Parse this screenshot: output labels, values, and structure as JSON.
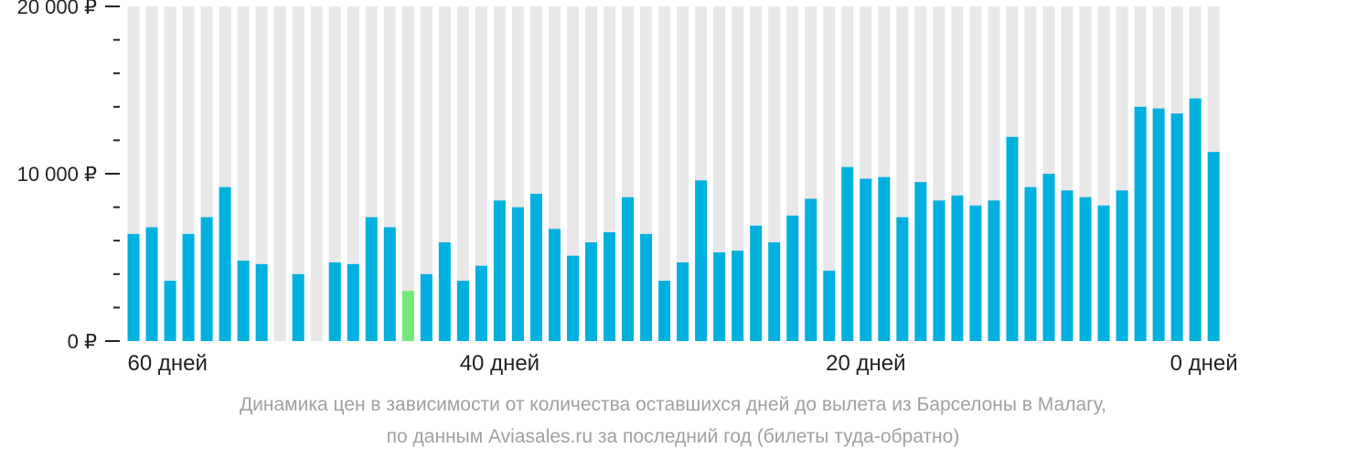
{
  "chart_data": {
    "type": "bar",
    "y_tick_labels": [
      "20 000 ₽",
      "10 000 ₽",
      "0 ₽"
    ],
    "y_tick_values": [
      20000,
      10000,
      0
    ],
    "ylim": [
      0,
      20000
    ],
    "x_tick_labels": [
      "60 дней",
      "40 дней",
      "20 дней",
      "0 дней"
    ],
    "x_tick_days": [
      60,
      40,
      20,
      0
    ],
    "days_range": [
      60,
      0
    ],
    "background_column_color": "#e8e8e8",
    "bar_color": "#00b0de",
    "highlight_color": "#73e877",
    "highlight_day": 45,
    "grid": false,
    "values": [
      6400,
      6800,
      3600,
      6400,
      7400,
      9200,
      4800,
      4600,
      null,
      4000,
      null,
      4700,
      4600,
      7400,
      6800,
      3000,
      4000,
      5900,
      3600,
      4500,
      8400,
      8000,
      8800,
      6700,
      5100,
      5900,
      6500,
      8600,
      6400,
      3600,
      4700,
      9600,
      5300,
      5400,
      6900,
      5900,
      7500,
      8500,
      4200,
      10400,
      9700,
      9800,
      7400,
      9500,
      8400,
      8700,
      8100,
      8400,
      12200,
      9200,
      10000,
      9000,
      8600,
      8100,
      9000,
      14000,
      13900,
      13600,
      14500,
      11300
    ]
  },
  "caption": {
    "line1": "Динамика цен в зависимости от количества оставшихся дней до вылета из Барселоны в Малагу,",
    "line2": "по данным Aviasales.ru за последний год (билеты туда-обратно)"
  }
}
